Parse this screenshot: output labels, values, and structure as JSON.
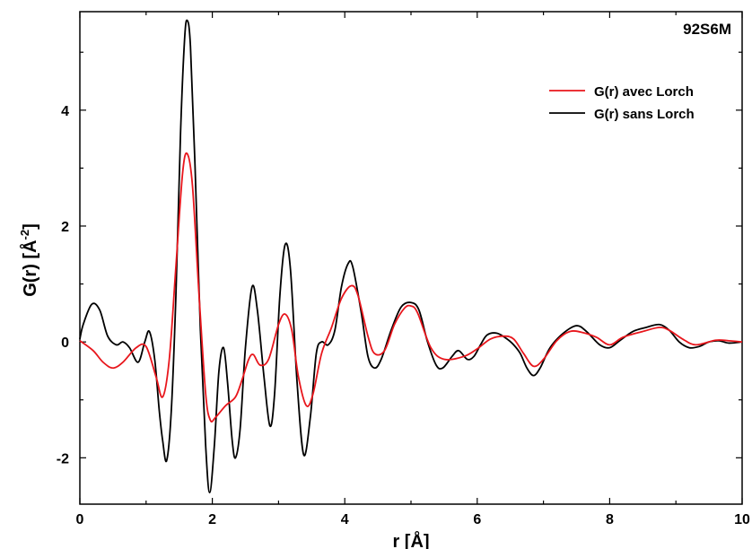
{
  "chart_data": {
    "type": "line",
    "title": "",
    "annotation": "92S6M",
    "xlabel": "r [Å]",
    "ylabel_main": "G(r) [Å",
    "ylabel_sup": "-2",
    "ylabel_end": "]",
    "xlim": [
      0,
      10
    ],
    "ylim": [
      -2.8,
      5.7
    ],
    "xticks": [
      0,
      2,
      4,
      6,
      8,
      10
    ],
    "xtick_labels": [
      "0",
      "2",
      "4",
      "6",
      "8",
      "10"
    ],
    "yticks": [
      -2,
      0,
      2,
      4
    ],
    "ytick_labels": [
      "-2",
      "0",
      "2",
      "4"
    ],
    "legend_position": "top-right",
    "grid": false,
    "series": [
      {
        "name": "G(r) avec Lorch",
        "color": "#e8161c",
        "points": [
          [
            0,
            0.02
          ],
          [
            0.2,
            -0.15
          ],
          [
            0.35,
            -0.35
          ],
          [
            0.5,
            -0.45
          ],
          [
            0.65,
            -0.35
          ],
          [
            0.85,
            -0.1
          ],
          [
            1.0,
            -0.08
          ],
          [
            1.15,
            -0.6
          ],
          [
            1.25,
            -0.95
          ],
          [
            1.35,
            -0.3
          ],
          [
            1.45,
            1.3
          ],
          [
            1.55,
            2.9
          ],
          [
            1.62,
            3.25
          ],
          [
            1.7,
            2.7
          ],
          [
            1.8,
            0.8
          ],
          [
            1.9,
            -0.9
          ],
          [
            1.97,
            -1.35
          ],
          [
            2.05,
            -1.3
          ],
          [
            2.2,
            -1.1
          ],
          [
            2.35,
            -0.95
          ],
          [
            2.45,
            -0.65
          ],
          [
            2.55,
            -0.3
          ],
          [
            2.62,
            -0.22
          ],
          [
            2.72,
            -0.4
          ],
          [
            2.85,
            -0.3
          ],
          [
            3.0,
            0.3
          ],
          [
            3.1,
            0.48
          ],
          [
            3.2,
            0.2
          ],
          [
            3.3,
            -0.6
          ],
          [
            3.42,
            -1.1
          ],
          [
            3.52,
            -0.9
          ],
          [
            3.65,
            -0.2
          ],
          [
            3.8,
            0.25
          ],
          [
            3.95,
            0.75
          ],
          [
            4.1,
            0.97
          ],
          [
            4.2,
            0.8
          ],
          [
            4.35,
            0.1
          ],
          [
            4.45,
            -0.2
          ],
          [
            4.6,
            -0.15
          ],
          [
            4.75,
            0.3
          ],
          [
            4.9,
            0.58
          ],
          [
            5.0,
            0.62
          ],
          [
            5.1,
            0.5
          ],
          [
            5.3,
            -0.1
          ],
          [
            5.5,
            -0.3
          ],
          [
            5.8,
            -0.25
          ],
          [
            6.0,
            -0.12
          ],
          [
            6.2,
            0.05
          ],
          [
            6.4,
            0.1
          ],
          [
            6.55,
            0.05
          ],
          [
            6.7,
            -0.2
          ],
          [
            6.85,
            -0.42
          ],
          [
            7.0,
            -0.3
          ],
          [
            7.2,
            0.02
          ],
          [
            7.4,
            0.18
          ],
          [
            7.6,
            0.16
          ],
          [
            7.8,
            0.08
          ],
          [
            8.0,
            -0.05
          ],
          [
            8.2,
            0.08
          ],
          [
            8.5,
            0.18
          ],
          [
            8.75,
            0.25
          ],
          [
            8.9,
            0.2
          ],
          [
            9.1,
            0.05
          ],
          [
            9.3,
            -0.05
          ],
          [
            9.6,
            0.03
          ],
          [
            9.8,
            0.02
          ],
          [
            10.0,
            0.0
          ]
        ]
      },
      {
        "name": "G(r) sans Lorch",
        "color": "#000000",
        "points": [
          [
            0,
            0.05
          ],
          [
            0.05,
            0.3
          ],
          [
            0.18,
            0.65
          ],
          [
            0.3,
            0.55
          ],
          [
            0.42,
            0.1
          ],
          [
            0.55,
            -0.05
          ],
          [
            0.65,
            0.0
          ],
          [
            0.75,
            -0.1
          ],
          [
            0.88,
            -0.35
          ],
          [
            0.98,
            0.0
          ],
          [
            1.05,
            0.18
          ],
          [
            1.13,
            -0.3
          ],
          [
            1.2,
            -1.2
          ],
          [
            1.25,
            -1.7
          ],
          [
            1.31,
            -2.05
          ],
          [
            1.38,
            -1.2
          ],
          [
            1.45,
            0.8
          ],
          [
            1.52,
            3.6
          ],
          [
            1.58,
            5.2
          ],
          [
            1.62,
            5.55
          ],
          [
            1.67,
            5.1
          ],
          [
            1.74,
            3.0
          ],
          [
            1.82,
            0.2
          ],
          [
            1.9,
            -1.8
          ],
          [
            1.96,
            -2.6
          ],
          [
            2.03,
            -1.8
          ],
          [
            2.1,
            -0.5
          ],
          [
            2.17,
            -0.1
          ],
          [
            2.23,
            -0.7
          ],
          [
            2.3,
            -1.7
          ],
          [
            2.35,
            -2.0
          ],
          [
            2.42,
            -1.5
          ],
          [
            2.5,
            -0.1
          ],
          [
            2.6,
            0.95
          ],
          [
            2.68,
            0.55
          ],
          [
            2.78,
            -0.6
          ],
          [
            2.87,
            -1.45
          ],
          [
            2.94,
            -0.9
          ],
          [
            3.02,
            0.8
          ],
          [
            3.1,
            1.68
          ],
          [
            3.18,
            1.25
          ],
          [
            3.28,
            -0.7
          ],
          [
            3.38,
            -1.95
          ],
          [
            3.48,
            -1.3
          ],
          [
            3.57,
            -0.2
          ],
          [
            3.65,
            0.0
          ],
          [
            3.75,
            -0.05
          ],
          [
            3.85,
            0.2
          ],
          [
            3.95,
            0.95
          ],
          [
            4.05,
            1.35
          ],
          [
            4.12,
            1.3
          ],
          [
            4.25,
            0.5
          ],
          [
            4.35,
            -0.25
          ],
          [
            4.45,
            -0.45
          ],
          [
            4.55,
            -0.3
          ],
          [
            4.7,
            0.2
          ],
          [
            4.85,
            0.6
          ],
          [
            5.0,
            0.68
          ],
          [
            5.12,
            0.55
          ],
          [
            5.25,
            0.0
          ],
          [
            5.38,
            -0.4
          ],
          [
            5.48,
            -0.45
          ],
          [
            5.62,
            -0.25
          ],
          [
            5.72,
            -0.15
          ],
          [
            5.85,
            -0.3
          ],
          [
            5.95,
            -0.25
          ],
          [
            6.05,
            -0.05
          ],
          [
            6.15,
            0.12
          ],
          [
            6.3,
            0.15
          ],
          [
            6.45,
            0.05
          ],
          [
            6.55,
            -0.05
          ],
          [
            6.65,
            -0.2
          ],
          [
            6.75,
            -0.45
          ],
          [
            6.85,
            -0.58
          ],
          [
            6.95,
            -0.45
          ],
          [
            7.1,
            -0.1
          ],
          [
            7.3,
            0.15
          ],
          [
            7.5,
            0.28
          ],
          [
            7.65,
            0.18
          ],
          [
            7.85,
            -0.05
          ],
          [
            8.0,
            -0.1
          ],
          [
            8.15,
            0.02
          ],
          [
            8.35,
            0.18
          ],
          [
            8.55,
            0.25
          ],
          [
            8.75,
            0.3
          ],
          [
            8.9,
            0.2
          ],
          [
            9.05,
            0.0
          ],
          [
            9.2,
            -0.1
          ],
          [
            9.35,
            -0.08
          ],
          [
            9.5,
            0.0
          ],
          [
            9.65,
            0.02
          ],
          [
            9.8,
            -0.02
          ],
          [
            10.0,
            0.0
          ]
        ]
      }
    ]
  }
}
